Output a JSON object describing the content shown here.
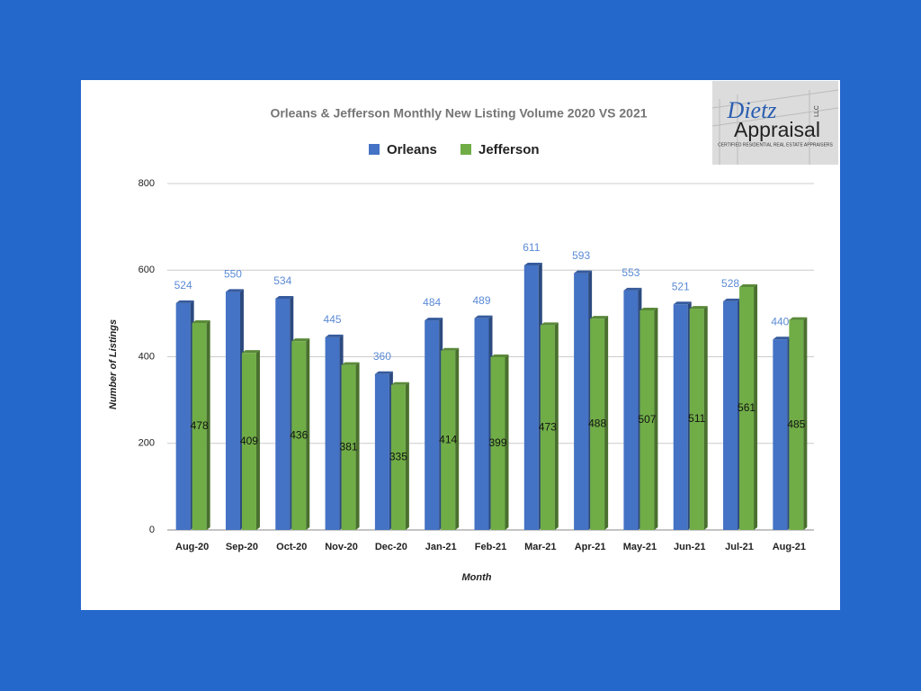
{
  "chart_data": {
    "type": "bar3d",
    "title": "Orleans & Jefferson  Monthly New Listing Volume 2020 VS 2021",
    "x_label": "Month",
    "y_label": "Number of Listings",
    "categories": [
      "Aug-20",
      "Sep-20",
      "Oct-20",
      "Nov-20",
      "Dec-20",
      "Jan-21",
      "Feb-21",
      "Mar-21",
      "Apr-21",
      "May-21",
      "Jun-21",
      "Jul-21",
      "Aug-21"
    ],
    "series": [
      {
        "name": "Orleans",
        "color": "#4472c4",
        "values": [
          524,
          550,
          534,
          445,
          360,
          484,
          489,
          611,
          593,
          553,
          521,
          528,
          440
        ]
      },
      {
        "name": "Jefferson",
        "color": "#70ad47",
        "values": [
          478,
          409,
          436,
          381,
          335,
          414,
          399,
          473,
          488,
          507,
          511,
          561,
          485
        ]
      }
    ],
    "ylim": [
      0,
      800
    ],
    "yticks": [
      0,
      200,
      400,
      600,
      800
    ],
    "grid": true,
    "legend": "top"
  },
  "logo": {
    "name": "Dietz",
    "suffix": "LLC",
    "word": "Appraisal",
    "tagline": "CERTIFIED RESIDENTIAL REAL ESTATE APPRAISERS"
  }
}
